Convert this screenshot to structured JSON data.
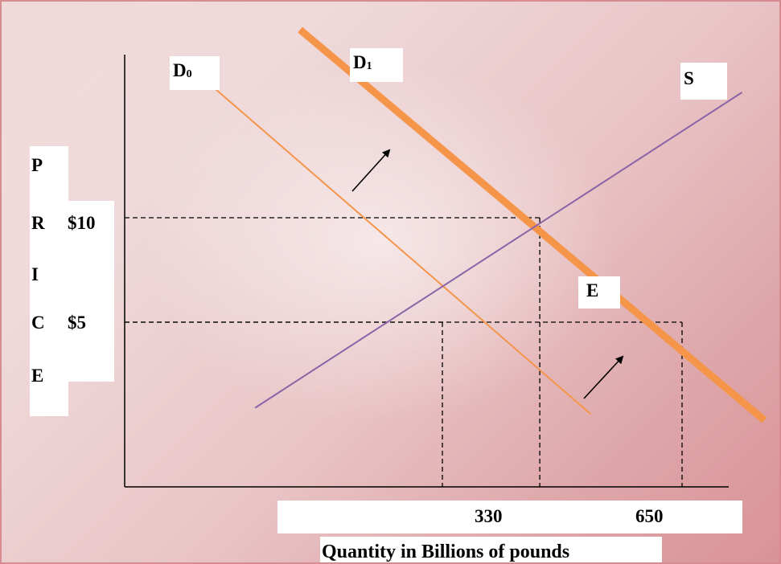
{
  "colors": {
    "background_start": "#f0dad9",
    "background_end": "#d99397",
    "demand_curve": "#f4954a",
    "supply_curve": "#8a64a6",
    "axis": "#000000",
    "guide_lines": "#000000",
    "label_box": "#ffffff"
  },
  "chart_data": {
    "type": "line",
    "xlabel": "Quantity in Billions of pounds",
    "ylabel_letters": [
      "P",
      "R",
      "I",
      "C",
      "E"
    ],
    "y_ticks": [
      {
        "label": "$10",
        "value": 10
      },
      {
        "label": "$5",
        "value": 5
      }
    ],
    "x_ticks": [
      {
        "label": "330",
        "value": 330
      },
      {
        "label": "650",
        "value": 650
      }
    ],
    "series": [
      {
        "name": "D0",
        "label_main": "D",
        "label_sub": "0",
        "role": "initial demand",
        "points": [
          [
            0,
            17
          ],
          [
            528,
            0.6
          ]
        ]
      },
      {
        "name": "D1",
        "label_main": "D",
        "label_sub": "1",
        "role": "increased demand",
        "points": [
          [
            140,
            19
          ],
          [
            760,
            0.3
          ]
        ]
      },
      {
        "name": "S",
        "label_main": "S",
        "label_sub": "",
        "role": "supply",
        "points": [
          [
            80,
            0.9
          ],
          [
            730,
            16
          ]
        ]
      }
    ],
    "equilibria": [
      {
        "quantity": 330,
        "price": 5,
        "curves": [
          "D0",
          "S"
        ]
      },
      {
        "quantity": 460,
        "price": 10,
        "curves": [
          "D1",
          "S"
        ]
      }
    ],
    "guide_points": [
      {
        "quantity": 650,
        "price": 5
      }
    ],
    "annotations": [
      {
        "text": "E",
        "meaning": "new equilibrium label"
      },
      {
        "text": "↗",
        "meaning": "demand shift arrow"
      },
      {
        "text": "↗",
        "meaning": "demand shift arrow"
      }
    ]
  }
}
